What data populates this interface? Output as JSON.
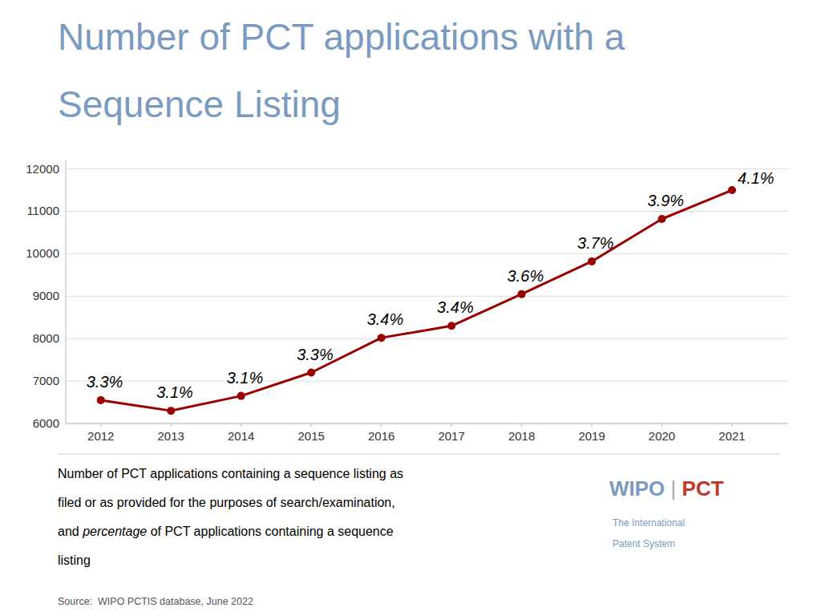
{
  "chart_data": {
    "type": "line",
    "title": [
      "Number of PCT applications with a",
      "Sequence Listing"
    ],
    "title_color": "#7a9bbf",
    "x": [
      2012,
      2013,
      2014,
      2015,
      2016,
      2017,
      2018,
      2019,
      2020,
      2021
    ],
    "values": [
      6550,
      6300,
      6650,
      7200,
      8020,
      8300,
      9050,
      9820,
      10820,
      11500
    ],
    "annotations": [
      "3.3%",
      "3.1%",
      "3.1%",
      "3.3%",
      "3.4%",
      "3.4%",
      "3.6%",
      "3.7%",
      "3.9%",
      "4.1%"
    ],
    "color": "#9b0000",
    "marker": "circle",
    "xlim": [
      2011.5,
      2021.8
    ],
    "xticks": [
      2012,
      2013,
      2014,
      2015,
      2016,
      2017,
      2018,
      2019,
      2020,
      2021
    ],
    "ylim": [
      6000,
      12200
    ],
    "yticks": [
      6000,
      7000,
      8000,
      9000,
      10000,
      11000,
      12000
    ],
    "grid": true,
    "caption": [
      "Number of PCT applications containing a sequence listing as",
      "filed or as provided for the purposes of search/examination,",
      [
        "and ",
        "percentage",
        " of PCT applications containing a sequence"
      ],
      "listing"
    ],
    "source": "Source:  WIPO PCTIS database, June 2022",
    "logo": [
      "WIPO",
      "|",
      "PCT"
    ],
    "logo_colors": [
      "#7a9bbf",
      "#aaaaaa",
      "#c0392b"
    ],
    "logo_subtitle": [
      "The International",
      "Patent System"
    ]
  }
}
